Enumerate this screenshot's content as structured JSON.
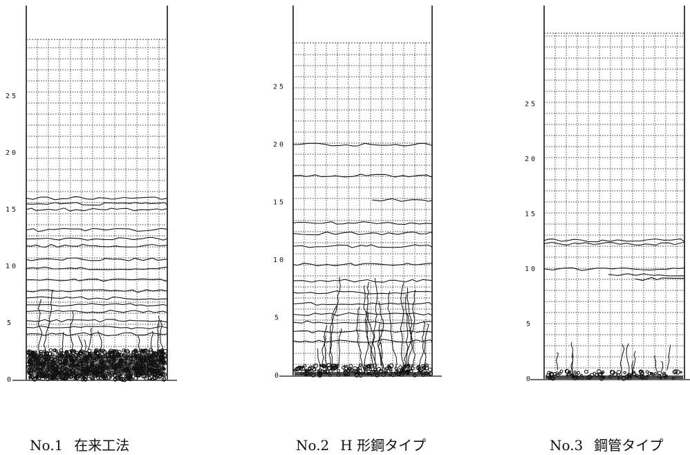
{
  "panels": [
    {
      "id": "no1",
      "number": "No.1",
      "name": "在来工法",
      "ticks": [
        "0",
        "5",
        "10",
        "15",
        "20",
        "25"
      ],
      "crack_band_top": 16,
      "damage": "heavy-crushing"
    },
    {
      "id": "no2",
      "number": "No.2",
      "name": "H 形鋼タイプ",
      "ticks": [
        "0",
        "5",
        "10",
        "15",
        "20",
        "25"
      ],
      "crack_band_top": 20,
      "damage": "moderate-vertical-cracks"
    },
    {
      "id": "no3",
      "number": "No.3",
      "name": "鋼管タイプ",
      "ticks": [
        "0",
        "5",
        "10",
        "15",
        "20",
        "25"
      ],
      "crack_band_top": 13,
      "damage": "light-base-cracks"
    }
  ],
  "colors": {
    "line": "#111111",
    "grid": "#333333",
    "background": "#ffffff"
  }
}
